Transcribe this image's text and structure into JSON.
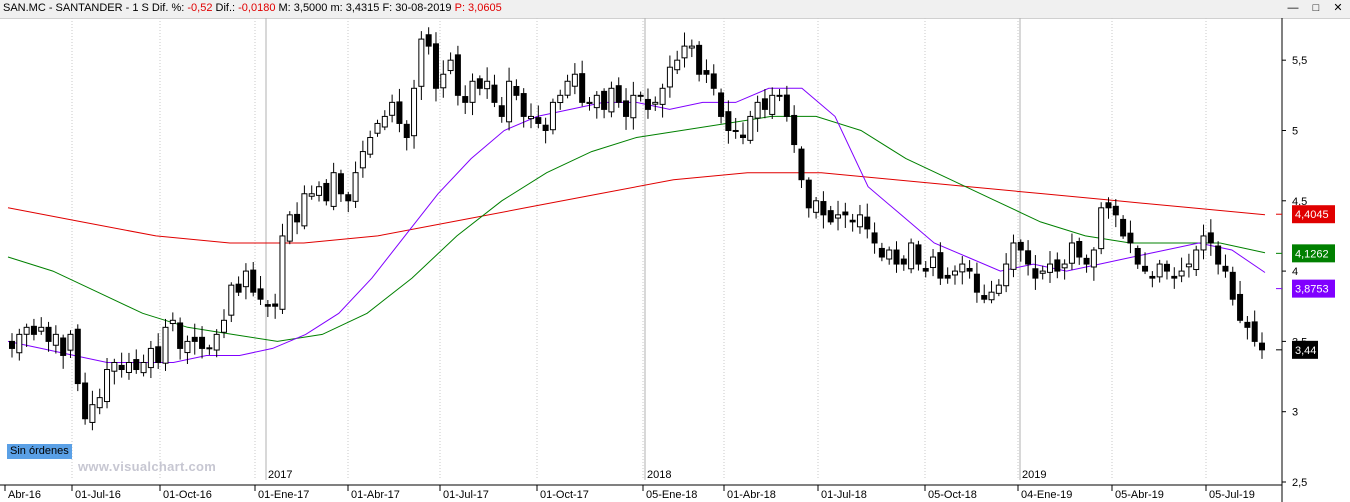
{
  "window": {
    "title_prefix": "SAN.MC - SANTANDER  -  1 S  Dif. %: ",
    "dif_pct": "-0,52",
    "dif_label": "  Dif.: ",
    "dif": "-0,0180",
    "rest": "  M: 3,5000  m: 3,4315  F: 30-08-2019  ",
    "p_label": "P: 3,0605",
    "buttons": {
      "minimize": "—",
      "restore": "□",
      "close": "✕"
    }
  },
  "overlay": {
    "watermark": "www.visualchart.com",
    "orders_badge": "Sin órdenes"
  },
  "chart_data": {
    "type": "candlestick",
    "y_range": [
      2.5,
      5.8
    ],
    "y_ticks": [
      {
        "value": 5.5,
        "label": "5,5"
      },
      {
        "value": 5.0,
        "label": "5"
      },
      {
        "value": 4.5,
        "label": "4,5"
      },
      {
        "value": 4.0,
        "label": "4"
      },
      {
        "value": 3.5,
        "label": "3,5"
      },
      {
        "value": 3.0,
        "label": "3"
      },
      {
        "value": 2.5,
        "label": "2,5"
      }
    ],
    "x_labels": [
      "Abr-16",
      "01-Jul-16",
      "01-Oct-16",
      "01-Ene-17",
      "01-Abr-17",
      "01-Jul-17",
      "01-Oct-17",
      "05-Ene-18",
      "01-Abr-18",
      "01-Jul-18",
      "05-Oct-18",
      "04-Ene-19",
      "05-Abr-19",
      "05-Jul-19"
    ],
    "year_labels": [
      "2017",
      "2018",
      "2019"
    ],
    "price_tags": [
      {
        "label": "4,4045",
        "value": 4.4045,
        "color": "#e00000"
      },
      {
        "label": "4,1262",
        "value": 4.1262,
        "color": "#008000"
      },
      {
        "label": "3,8753",
        "value": 3.8753,
        "color": "#8000ff"
      },
      {
        "label": "3,44",
        "value": 3.44,
        "color": "#000000"
      }
    ],
    "series": [
      {
        "kind": "candles",
        "color_up": "#ffffff",
        "color_down": "#000000",
        "approx_close": [
          3.45,
          3.55,
          3.6,
          3.55,
          3.6,
          3.5,
          3.55,
          3.4,
          3.55,
          3.2,
          2.95,
          3.05,
          3.1,
          3.3,
          3.35,
          3.3,
          3.35,
          3.3,
          3.35,
          3.45,
          3.35,
          3.6,
          3.65,
          3.45,
          3.5,
          3.5,
          3.45,
          3.45,
          3.55,
          3.65,
          3.9,
          3.85,
          4.0,
          3.85,
          3.8,
          3.75,
          3.75,
          4.25,
          4.4,
          4.35,
          4.55,
          4.55,
          4.6,
          4.5,
          4.7,
          4.55,
          4.5,
          4.7,
          4.85,
          4.95,
          5.05,
          5.1,
          5.2,
          5.05,
          4.95,
          5.3,
          5.65,
          5.6,
          5.3,
          5.4,
          5.5,
          5.25,
          5.2,
          5.35,
          5.3,
          5.35,
          5.2,
          5.1,
          5.35,
          5.25,
          5.1,
          5.1,
          5.05,
          5.0,
          5.2,
          5.25,
          5.35,
          5.4,
          5.2,
          5.2,
          5.25,
          5.15,
          5.3,
          5.2,
          5.1,
          5.25,
          5.25,
          5.15,
          5.2,
          5.3,
          5.45,
          5.5,
          5.6,
          5.6,
          5.4,
          5.4,
          5.3,
          5.1,
          5.0,
          5.0,
          4.95,
          5.1,
          5.2,
          5.15,
          5.25,
          5.25,
          5.1,
          4.9,
          4.65,
          4.45,
          4.5,
          4.4,
          4.35,
          4.4,
          4.4,
          4.35,
          4.4,
          4.3,
          4.2,
          4.1,
          4.15,
          4.05,
          4.05,
          4.2,
          4.05,
          4.0,
          4.1,
          3.95,
          3.95,
          4.0,
          4.05,
          4.0,
          3.85,
          3.8,
          3.85,
          3.9,
          4.05,
          4.2,
          4.15,
          4.05,
          3.95,
          4.0,
          4.05,
          4.0,
          4.05,
          4.2,
          4.1,
          4.05,
          4.15,
          4.45,
          4.45,
          4.4,
          4.25,
          4.2,
          4.05,
          4.0,
          3.95,
          4.05,
          4.0,
          3.95,
          4.0,
          4.05,
          4.15,
          4.25,
          4.2,
          4.05,
          4.0,
          3.8,
          3.65,
          3.6,
          3.5,
          3.44
        ]
      },
      {
        "kind": "line",
        "name": "",
        "color": "#8000ff",
        "values_approx": [
          3.5,
          3.45,
          3.4,
          3.35,
          3.35,
          3.35,
          3.4,
          3.4,
          3.45,
          3.55,
          3.7,
          3.95,
          4.25,
          4.55,
          4.8,
          5.0,
          5.1,
          5.15,
          5.2,
          5.2,
          5.15,
          5.2,
          5.2,
          5.3,
          5.3,
          5.1,
          4.6,
          4.4,
          4.2,
          4.1,
          4.0,
          4.05,
          4.0,
          4.05,
          4.1,
          4.15,
          4.2,
          4.15,
          3.99
        ]
      },
      {
        "kind": "line",
        "name": "",
        "color": "#008000",
        "values_approx": [
          4.1,
          4.0,
          3.85,
          3.7,
          3.6,
          3.55,
          3.5,
          3.55,
          3.7,
          3.95,
          4.25,
          4.5,
          4.7,
          4.85,
          4.95,
          5.0,
          5.05,
          5.1,
          5.1,
          5.0,
          4.8,
          4.65,
          4.5,
          4.35,
          4.25,
          4.2,
          4.2,
          4.2,
          4.13
        ]
      },
      {
        "kind": "line",
        "name": "",
        "color": "#e00000",
        "values_approx": [
          4.45,
          4.35,
          4.25,
          4.2,
          4.2,
          4.25,
          4.35,
          4.45,
          4.55,
          4.65,
          4.7,
          4.7,
          4.65,
          4.6,
          4.55,
          4.5,
          4.45,
          4.4
        ]
      }
    ]
  }
}
